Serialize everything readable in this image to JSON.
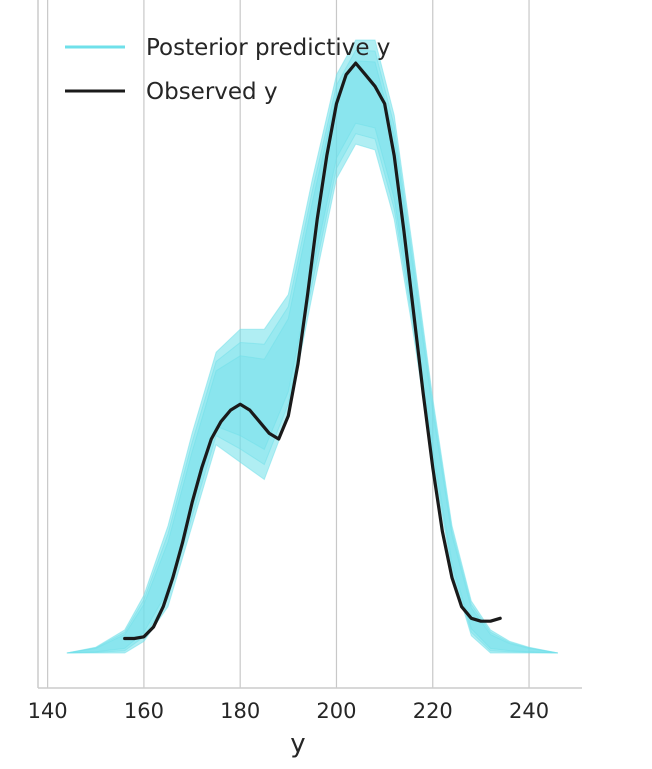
{
  "chart_data": {
    "type": "line",
    "title": "",
    "xlabel": "y",
    "ylabel": "",
    "xlim": [
      138,
      251
    ],
    "ylim": [
      0,
      1.06
    ],
    "x_ticks": [
      "140",
      "160",
      "180",
      "200",
      "220",
      "240"
    ],
    "y_ticks_shown": false,
    "grid": "vertical",
    "legend_position": "top-left",
    "series": [
      {
        "name": "Posterior predictive y",
        "color": "#6fe0ea",
        "kind": "band",
        "x": [
          144,
          150,
          156,
          160,
          165,
          170,
          175,
          180,
          185,
          190,
          195,
          200,
          204,
          208,
          212,
          216,
          220,
          224,
          228,
          232,
          236,
          240,
          246
        ],
        "lower": [
          0.0,
          0.0,
          0.0,
          0.02,
          0.08,
          0.22,
          0.36,
          0.33,
          0.3,
          0.41,
          0.62,
          0.82,
          0.88,
          0.87,
          0.75,
          0.55,
          0.33,
          0.14,
          0.03,
          0.0,
          0.0,
          0.0,
          0.0
        ],
        "upper": [
          0.0,
          0.01,
          0.04,
          0.1,
          0.22,
          0.38,
          0.52,
          0.56,
          0.56,
          0.62,
          0.82,
          1.0,
          1.06,
          1.06,
          0.93,
          0.69,
          0.44,
          0.22,
          0.09,
          0.04,
          0.02,
          0.01,
          0.0
        ]
      },
      {
        "name": "Observed y",
        "color": "#1a1a1a",
        "kind": "line",
        "x": [
          156,
          158,
          160,
          162,
          164,
          166,
          168,
          170,
          172,
          174,
          176,
          178,
          180,
          182,
          184,
          186,
          188,
          190,
          192,
          194,
          196,
          198,
          200,
          202,
          204,
          206,
          208,
          210,
          212,
          214,
          216,
          218,
          220,
          222,
          224,
          226,
          228,
          230,
          232,
          234
        ],
        "y": [
          0.025,
          0.025,
          0.028,
          0.045,
          0.08,
          0.13,
          0.19,
          0.26,
          0.32,
          0.37,
          0.4,
          0.42,
          0.43,
          0.42,
          0.4,
          0.38,
          0.37,
          0.41,
          0.5,
          0.62,
          0.75,
          0.86,
          0.95,
          1.0,
          1.02,
          1.0,
          0.98,
          0.95,
          0.86,
          0.73,
          0.59,
          0.45,
          0.32,
          0.21,
          0.13,
          0.08,
          0.06,
          0.055,
          0.055,
          0.06
        ]
      }
    ]
  }
}
